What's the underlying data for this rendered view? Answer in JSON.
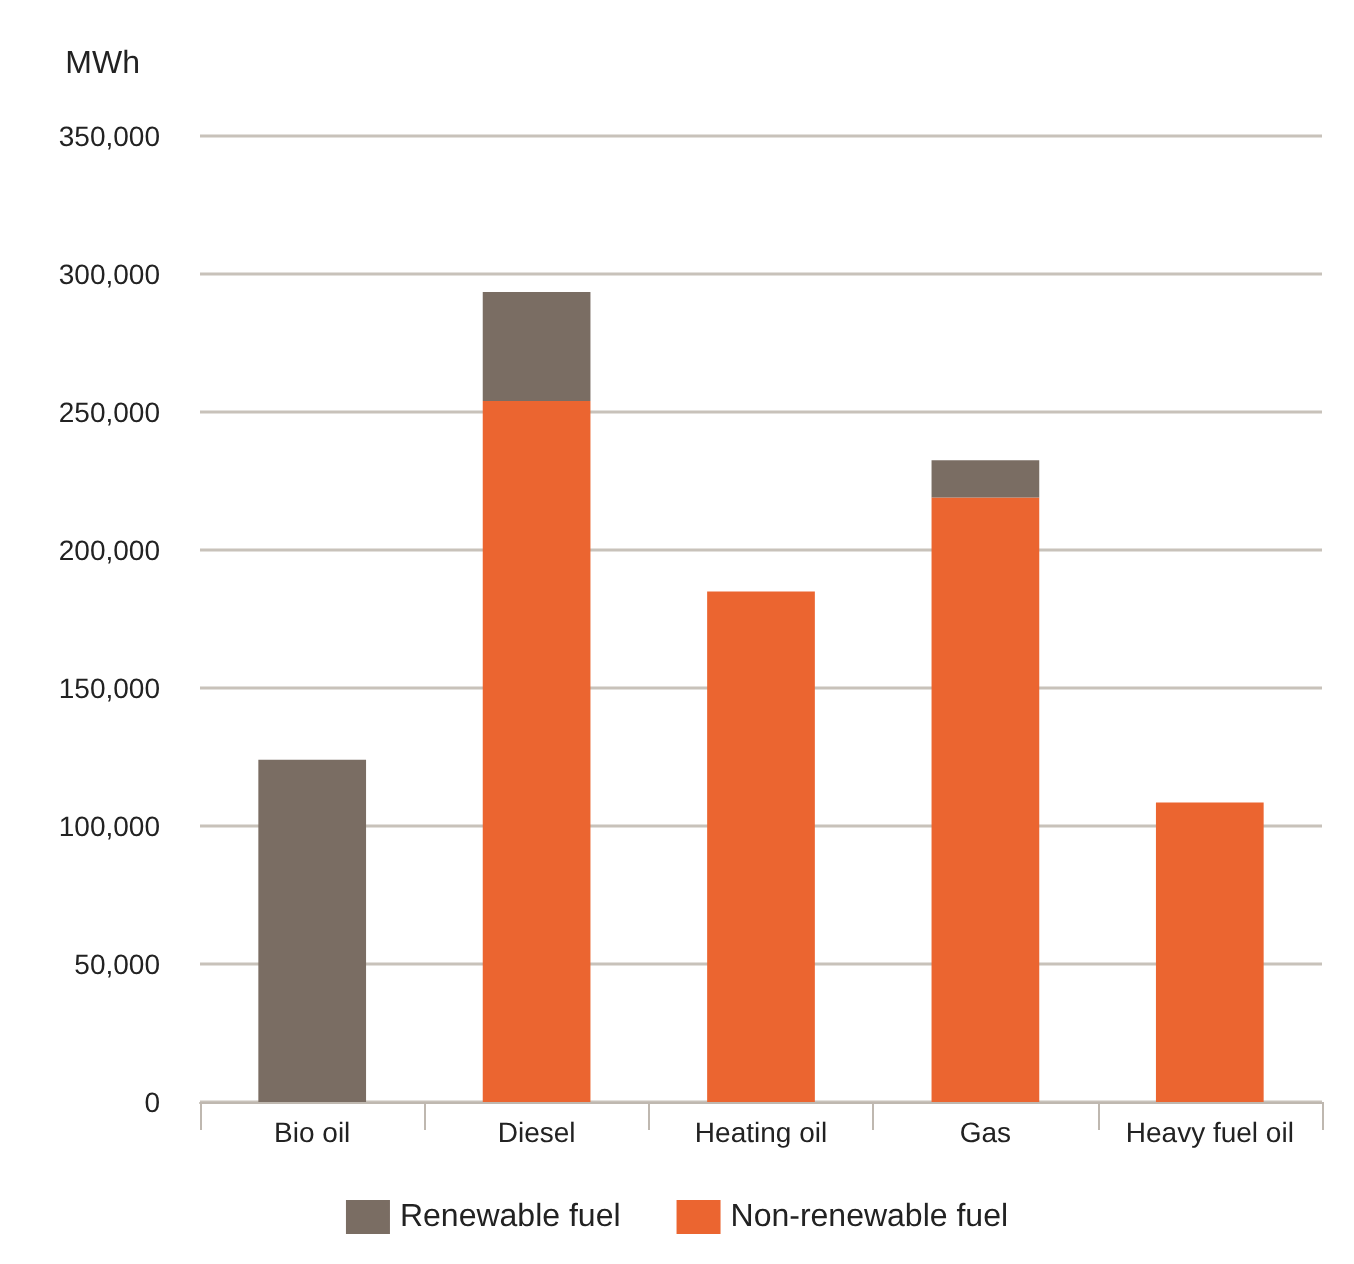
{
  "chart_data": {
    "type": "bar",
    "stacked": true,
    "ylabel": "MWh",
    "categories": [
      "Bio oil",
      "Diesel",
      "Heating oil",
      "Gas",
      "Heavy fuel oil"
    ],
    "series": [
      {
        "name": "Non-renewable fuel",
        "color": "#eb6530",
        "values": [
          null,
          254000,
          185000,
          219000,
          108500
        ]
      },
      {
        "name": "Renewable fuel",
        "color": "#7a6d63",
        "values": [
          124000,
          39500,
          null,
          13500,
          null
        ]
      }
    ],
    "ylim": [
      0,
      350000
    ],
    "yticks": [
      0,
      {
        "value": 50000,
        "label": "50,000"
      },
      {
        "value": 100000,
        "label": "100,000"
      },
      {
        "value": 150000,
        "label": "150,000"
      },
      {
        "value": 200000,
        "label": "200,000"
      },
      {
        "value": 250000,
        "label": "250,000"
      },
      {
        "value": 300000,
        "label": "300,000"
      },
      {
        "value": 350000,
        "label": "350,000"
      }
    ],
    "grid": true,
    "legend": "bottom"
  }
}
